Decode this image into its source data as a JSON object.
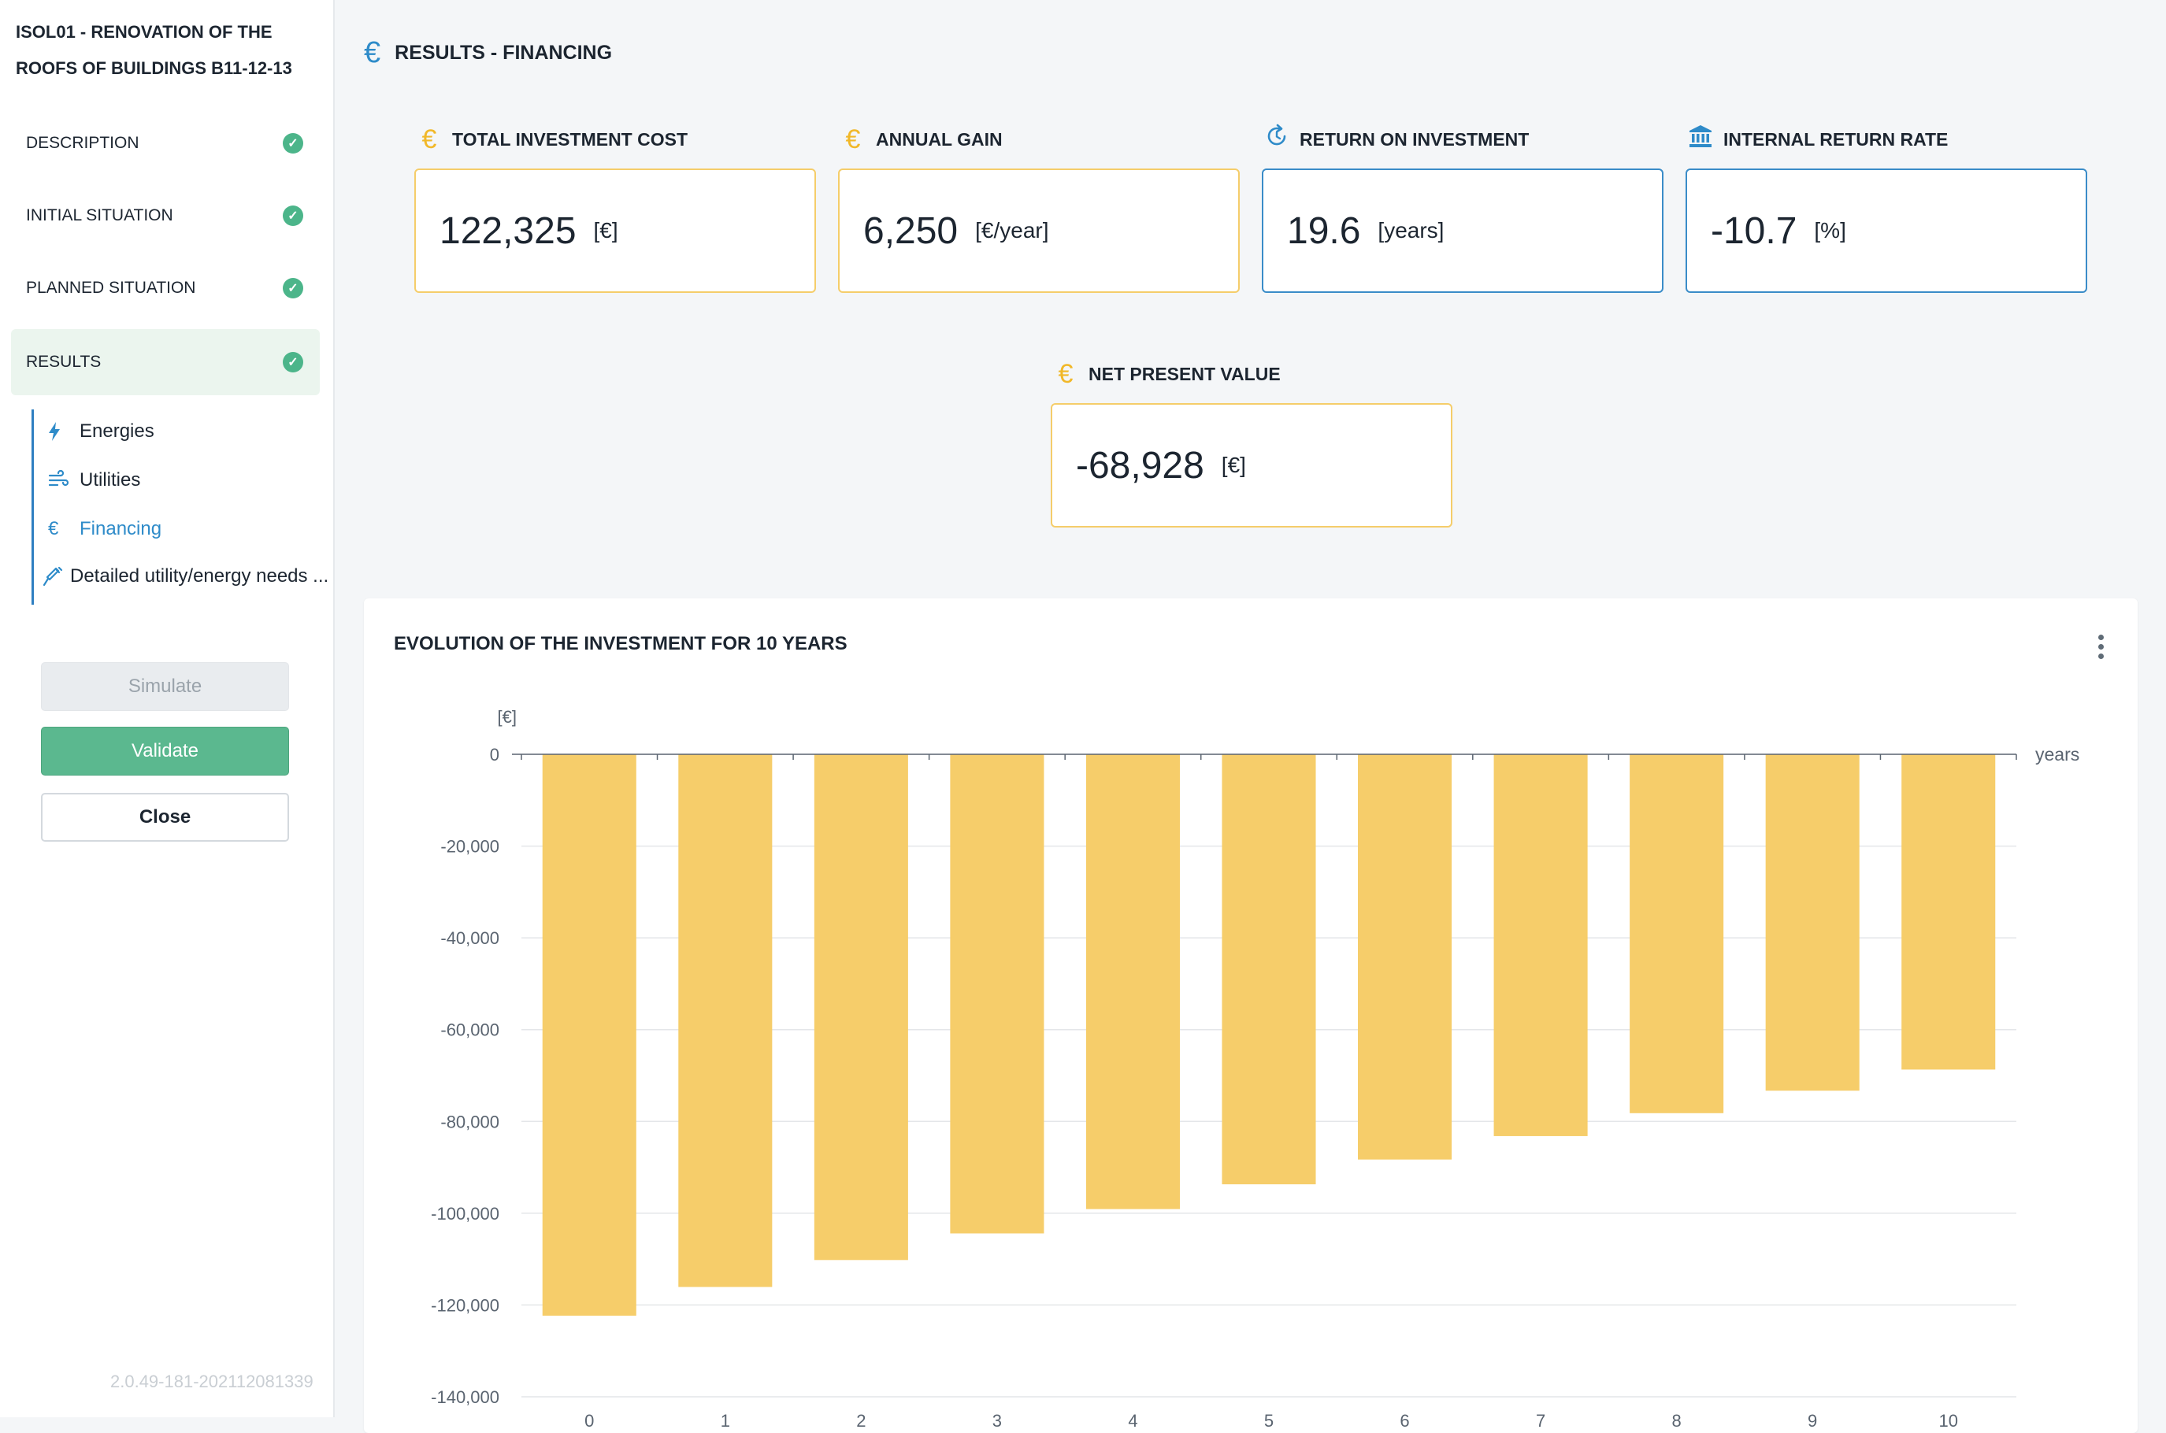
{
  "project": {
    "title": "ISOL01 - RENOVATION OF THE ROOFS OF BUILDINGS B11-12-13"
  },
  "steps": [
    {
      "label": "DESCRIPTION",
      "done": true,
      "active": false
    },
    {
      "label": "INITIAL SITUATION",
      "done": true,
      "active": false
    },
    {
      "label": "PLANNED SITUATION",
      "done": true,
      "active": false
    },
    {
      "label": "RESULTS",
      "done": true,
      "active": true
    }
  ],
  "subnav": [
    {
      "label": "Energies",
      "icon": "bolt-icon",
      "current": false
    },
    {
      "label": "Utilities",
      "icon": "wind-icon",
      "current": false
    },
    {
      "label": "Financing",
      "icon": "euro-icon",
      "current": true
    },
    {
      "label": "Detailed utility/energy needs ...",
      "icon": "syringe-icon",
      "current": false
    }
  ],
  "buttons": {
    "simulate": "Simulate",
    "validate": "Validate",
    "close": "Close"
  },
  "version": "2.0.49-181-202112081339",
  "page": {
    "title": "RESULTS - FINANCING",
    "icon": "euro-icon"
  },
  "kpis": [
    {
      "label": "TOTAL INVESTMENT COST",
      "value": "122,325",
      "unit": "[€]",
      "icon": "euro-icon",
      "accent": "#f5cd6a"
    },
    {
      "label": "ANNUAL GAIN",
      "value": "6,250",
      "unit": "[€/year]",
      "icon": "euro-icon",
      "accent": "#f5cd6a"
    },
    {
      "label": "RETURN ON INVESTMENT",
      "value": "19.6",
      "unit": "[years]",
      "icon": "refresh-clock-icon",
      "accent": "#3a8cc8"
    },
    {
      "label": "INTERNAL RETURN RATE",
      "value": "-10.7",
      "unit": "[%]",
      "icon": "bank-icon",
      "accent": "#3a8cc8"
    },
    {
      "label": "NET PRESENT VALUE",
      "value": "-68,928",
      "unit": "[€]",
      "icon": "euro-icon",
      "accent": "#f5cd6a"
    }
  ],
  "colors": {
    "gold": "#f1b829",
    "bar": "#f6cd6a",
    "blue": "#2e8bc9",
    "success": "#4cb58a"
  },
  "chart": {
    "title": "EVOLUTION OF THE INVESTMENT FOR 10 YEARS"
  },
  "chart_data": {
    "type": "bar",
    "title": "EVOLUTION OF THE INVESTMENT FOR 10 YEARS",
    "xlabel": "years",
    "ylabel": "[€]",
    "categories": [
      "0",
      "1",
      "2",
      "3",
      "4",
      "5",
      "6",
      "7",
      "8",
      "9",
      "10"
    ],
    "values": [
      -122325,
      -116075,
      -110200,
      -104400,
      -99100,
      -93700,
      -88300,
      -83200,
      -78200,
      -73300,
      -68700
    ],
    "ylim": [
      -140000,
      0
    ],
    "yticks": [
      0,
      -20000,
      -40000,
      -60000,
      -80000,
      -100000,
      -120000,
      -140000
    ],
    "ytick_labels": [
      "0",
      "-20,000",
      "-40,000",
      "-60,000",
      "-80,000",
      "-100,000",
      "-120,000",
      "-140,000"
    ],
    "grid": true,
    "legend": "none"
  }
}
